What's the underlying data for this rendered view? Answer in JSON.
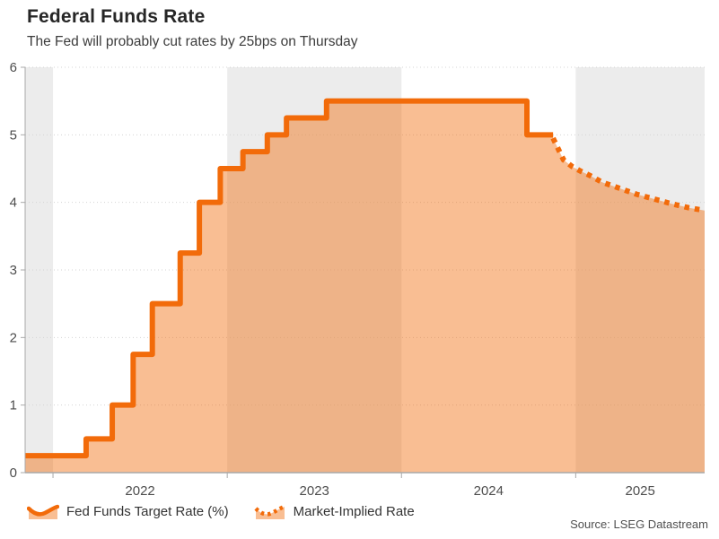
{
  "header": {
    "title": "Federal Funds Rate",
    "subtitle": "The Fed will probably cut rates by 25bps on Thursday"
  },
  "legend": {
    "items": [
      {
        "label": "Fed Funds Target Rate (%)",
        "style": "solid"
      },
      {
        "label": "Market-Implied Rate",
        "style": "dotted"
      }
    ]
  },
  "source": "Source: LSEG Datastream",
  "colors": {
    "line": "#f26b0a",
    "fill": "rgba(242,107,10,0.44)",
    "band": "#ececec",
    "grid": "#d4d4d4",
    "axis": "#a9a9a9",
    "tick_label": "#4d4d4d"
  },
  "chart_data": {
    "type": "line",
    "title": "Federal Funds Rate",
    "subtitle": "The Fed will probably cut rates by 25bps on Thursday",
    "x_axis": {
      "min": 2021.84,
      "max": 2025.74,
      "ticks": [
        2022,
        2023,
        2024,
        2025
      ],
      "tick_labels": [
        "2022",
        "2023",
        "2024",
        "2025"
      ]
    },
    "y_axis": {
      "min": 0,
      "max": 6,
      "ticks": [
        0,
        1,
        2,
        3,
        4,
        5,
        6
      ]
    },
    "grid": "dotted-horizontal",
    "legend_position": "bottom-left",
    "shaded_year_bands": [
      [
        2021.84,
        2022
      ],
      [
        2023,
        2024
      ],
      [
        2025,
        2025.74
      ]
    ],
    "series": [
      {
        "name": "Fed Funds Target Rate (%)",
        "type": "step",
        "line_style": "solid",
        "step_points": [
          [
            2021.84,
            0.25
          ],
          [
            2022.19,
            0.5
          ],
          [
            2022.34,
            1.0
          ],
          [
            2022.46,
            1.75
          ],
          [
            2022.57,
            2.5
          ],
          [
            2022.73,
            3.25
          ],
          [
            2022.84,
            4.0
          ],
          [
            2022.96,
            4.5
          ],
          [
            2023.09,
            4.75
          ],
          [
            2023.23,
            5.0
          ],
          [
            2023.34,
            5.25
          ],
          [
            2023.57,
            5.5
          ],
          [
            2024.72,
            5.0
          ]
        ],
        "end_x": 2024.87
      },
      {
        "name": "Market-Implied Rate",
        "type": "curve",
        "line_style": "dotted",
        "points": [
          [
            2024.87,
            4.95
          ],
          [
            2024.93,
            4.63
          ],
          [
            2024.98,
            4.53
          ],
          [
            2025.03,
            4.46
          ],
          [
            2025.08,
            4.4
          ],
          [
            2025.15,
            4.3
          ],
          [
            2025.25,
            4.21
          ],
          [
            2025.35,
            4.12
          ],
          [
            2025.45,
            4.05
          ],
          [
            2025.55,
            3.98
          ],
          [
            2025.65,
            3.92
          ],
          [
            2025.74,
            3.88
          ]
        ]
      }
    ]
  }
}
